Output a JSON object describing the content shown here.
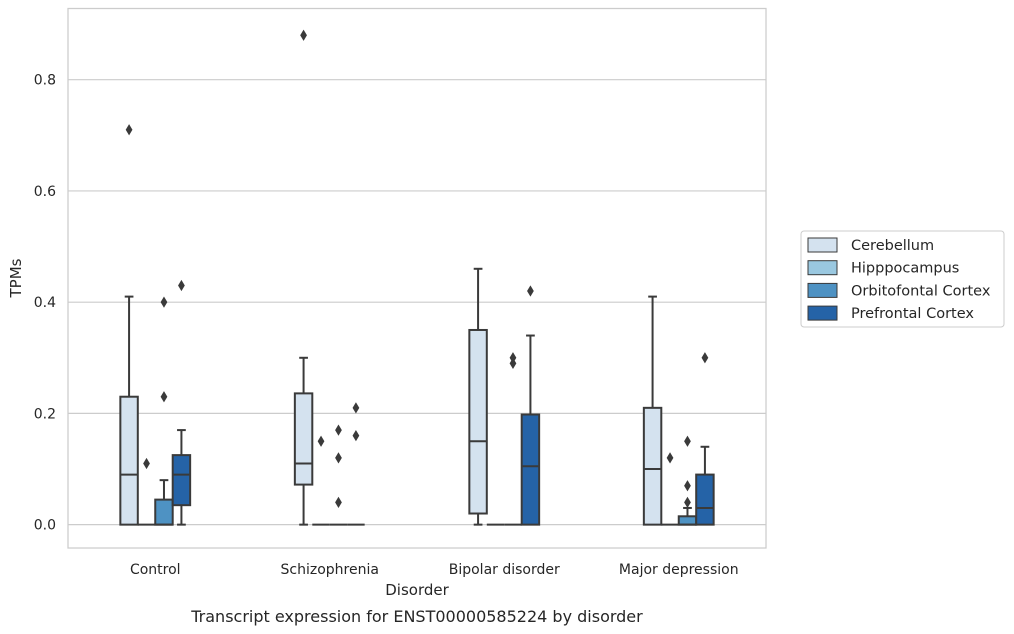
{
  "chart_data": {
    "type": "box",
    "title": "",
    "caption": "Transcript expression for ENST00000585224 by disorder",
    "xlabel": "Disorder",
    "ylabel": "TPMs",
    "ylim": [
      -0.042,
      0.928
    ],
    "yticks": [
      0.0,
      0.2,
      0.4,
      0.6,
      0.8
    ],
    "ytick_labels": [
      "0.0",
      "0.2",
      "0.4",
      "0.6",
      "0.8"
    ],
    "grid": "horizontal",
    "legend_position": "right",
    "categories": [
      "Control",
      "Schizophrenia",
      "Bipolar disorder",
      "Major depression"
    ],
    "series": [
      {
        "name": "Cerebellum",
        "color": "#d4e2ef",
        "boxes": [
          {
            "q1": 0.0,
            "median": 0.09,
            "q3": 0.23,
            "whisker_low": 0.0,
            "whisker_high": 0.41,
            "outliers": [
              0.71
            ]
          },
          {
            "q1": 0.072,
            "median": 0.11,
            "q3": 0.236,
            "whisker_low": 0.0,
            "whisker_high": 0.3,
            "outliers": [
              0.88
            ]
          },
          {
            "q1": 0.02,
            "median": 0.15,
            "q3": 0.35,
            "whisker_low": 0.0,
            "whisker_high": 0.46,
            "outliers": []
          },
          {
            "q1": 0.0,
            "median": 0.1,
            "q3": 0.21,
            "whisker_low": 0.0,
            "whisker_high": 0.41,
            "outliers": []
          }
        ]
      },
      {
        "name": "Hipppocampus",
        "color": "#9ac8e0",
        "boxes": [
          {
            "q1": 0.0,
            "median": 0.0,
            "q3": 0.0,
            "whisker_low": 0.0,
            "whisker_high": 0.0,
            "outliers": [
              0.11
            ]
          },
          {
            "q1": 0.0,
            "median": 0.0,
            "q3": 0.0,
            "whisker_low": 0.0,
            "whisker_high": 0.0,
            "outliers": [
              0.15
            ]
          },
          {
            "q1": 0.0,
            "median": 0.0,
            "q3": 0.0,
            "whisker_low": 0.0,
            "whisker_high": 0.0,
            "outliers": []
          },
          {
            "q1": 0.0,
            "median": 0.0,
            "q3": 0.0,
            "whisker_low": 0.0,
            "whisker_high": 0.0,
            "outliers": [
              0.12
            ]
          }
        ]
      },
      {
        "name": "Orbitofontal Cortex",
        "color": "#4e92c3",
        "boxes": [
          {
            "q1": 0.0,
            "median": 0.0,
            "q3": 0.045,
            "whisker_low": 0.0,
            "whisker_high": 0.08,
            "outliers": [
              0.23,
              0.4
            ]
          },
          {
            "q1": 0.0,
            "median": 0.0,
            "q3": 0.0,
            "whisker_low": 0.0,
            "whisker_high": 0.0,
            "outliers": [
              0.04,
              0.12,
              0.17
            ]
          },
          {
            "q1": 0.0,
            "median": 0.0,
            "q3": 0.0,
            "whisker_low": 0.0,
            "whisker_high": 0.0,
            "outliers": [
              0.29,
              0.3
            ]
          },
          {
            "q1": 0.0,
            "median": 0.0,
            "q3": 0.015,
            "whisker_low": 0.0,
            "whisker_high": 0.03,
            "outliers": [
              0.04,
              0.07,
              0.15
            ]
          }
        ]
      },
      {
        "name": "Prefrontal Cortex",
        "color": "#2563a7",
        "boxes": [
          {
            "q1": 0.035,
            "median": 0.09,
            "q3": 0.125,
            "whisker_low": 0.0,
            "whisker_high": 0.17,
            "outliers": [
              0.43
            ]
          },
          {
            "q1": 0.0,
            "median": 0.0,
            "q3": 0.0,
            "whisker_low": 0.0,
            "whisker_high": 0.0,
            "outliers": [
              0.16,
              0.21
            ]
          },
          {
            "q1": 0.0,
            "median": 0.105,
            "q3": 0.198,
            "whisker_low": 0.0,
            "whisker_high": 0.34,
            "outliers": [
              0.42
            ]
          },
          {
            "q1": 0.0,
            "median": 0.03,
            "q3": 0.09,
            "whisker_low": 0.0,
            "whisker_high": 0.14,
            "outliers": [
              0.3
            ]
          }
        ]
      }
    ]
  }
}
